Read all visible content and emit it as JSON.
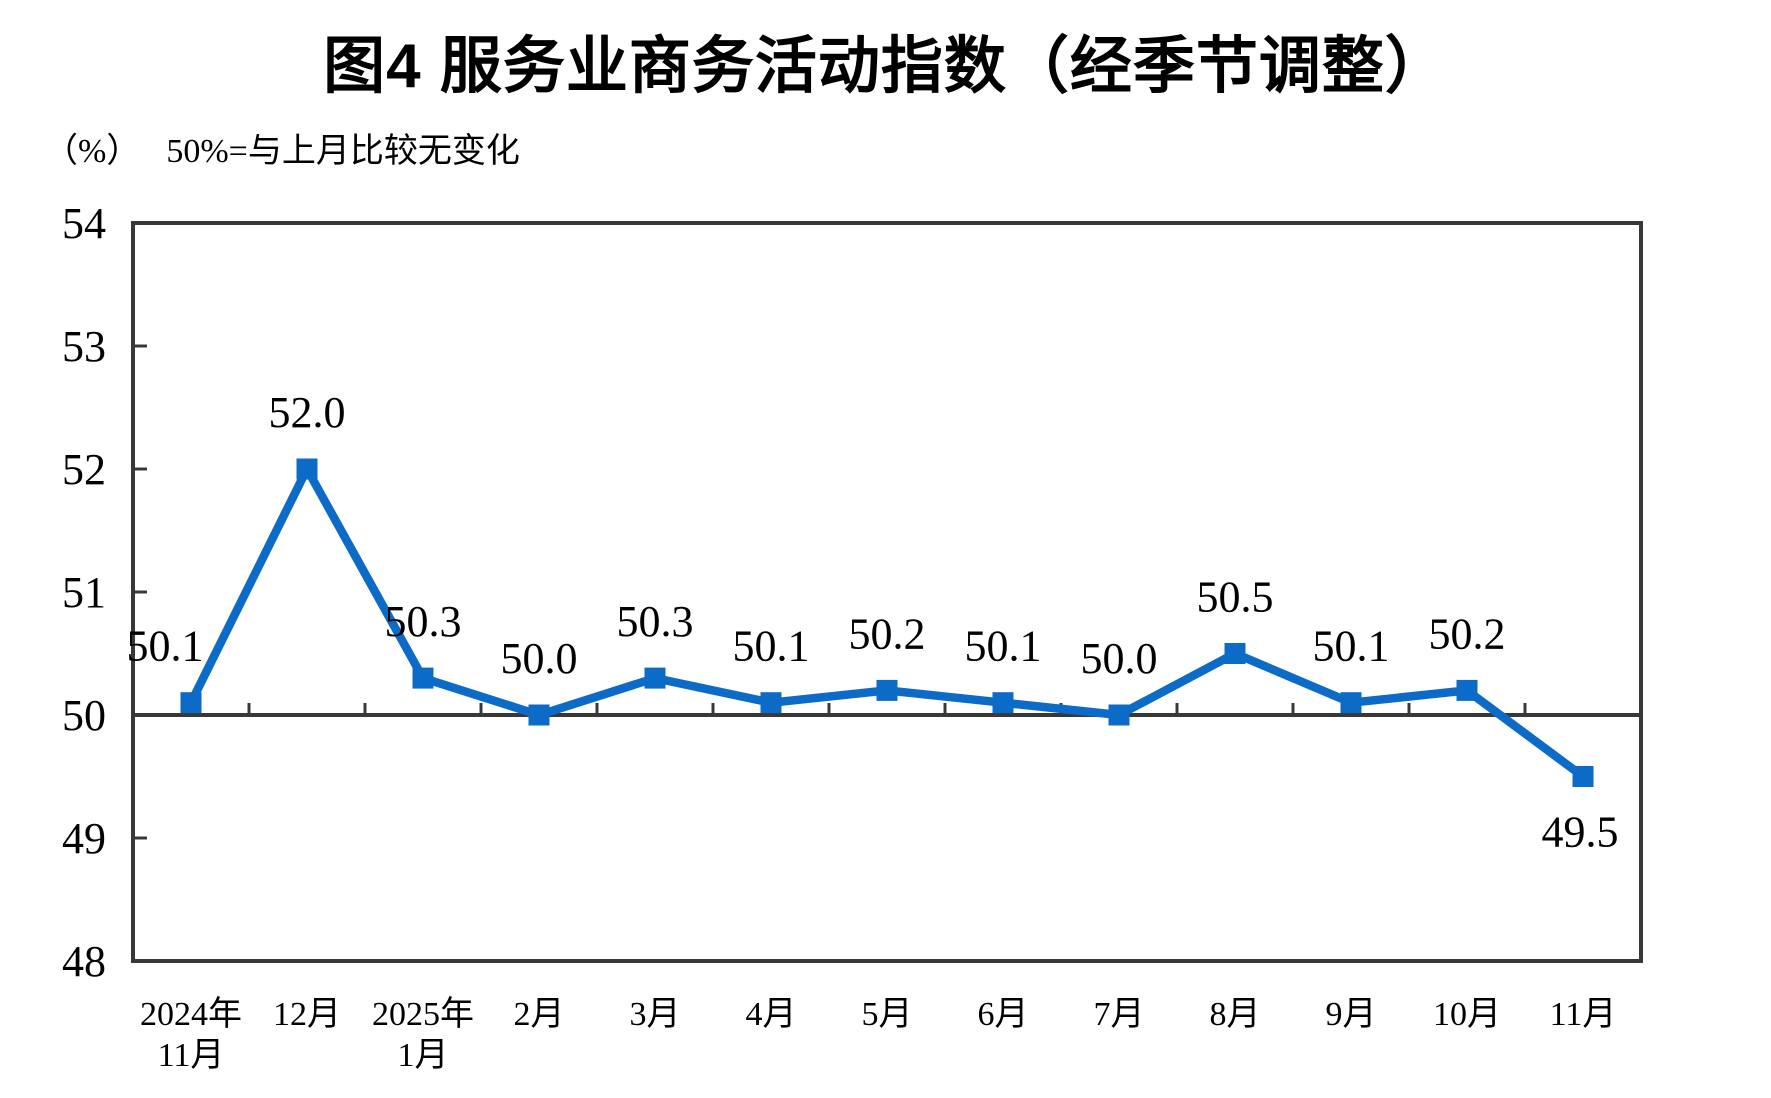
{
  "page_title": "图4  服务业商务活动指数（经季节调整）",
  "subtitle": {
    "unit": "（%）",
    "note": "50%=与上月比较无变化"
  },
  "chart_data": {
    "type": "line",
    "title": "图4  服务业商务活动指数（经季节调整）",
    "unit_label": "（%）",
    "annotation": "50%=与上月比较无变化",
    "categories": [
      [
        "2024年",
        "11月"
      ],
      [
        "12月"
      ],
      [
        "2025年",
        "1月"
      ],
      [
        "2月"
      ],
      [
        "3月"
      ],
      [
        "4月"
      ],
      [
        "5月"
      ],
      [
        "6月"
      ],
      [
        "7月"
      ],
      [
        "8月"
      ],
      [
        "9月"
      ],
      [
        "10月"
      ],
      [
        "11月"
      ]
    ],
    "values": [
      50.1,
      52.0,
      50.3,
      50.0,
      50.3,
      50.1,
      50.2,
      50.1,
      50.0,
      50.5,
      50.1,
      50.2,
      49.5
    ],
    "data_labels": [
      "50.1",
      "52.0",
      "50.3",
      "50.0",
      "50.3",
      "50.1",
      "50.2",
      "50.1",
      "50.0",
      "50.5",
      "50.1",
      "50.2",
      "49.5"
    ],
    "ylim": [
      48,
      54
    ],
    "yticks": [
      48,
      49,
      50,
      51,
      52,
      53,
      54
    ],
    "reference_line_y": 50,
    "grid": false,
    "legend": "none",
    "marker": "square",
    "colors": {
      "series": "#0D6BC8",
      "axis": "#383838",
      "text": "#000000",
      "background": "#FFFFFF"
    }
  }
}
